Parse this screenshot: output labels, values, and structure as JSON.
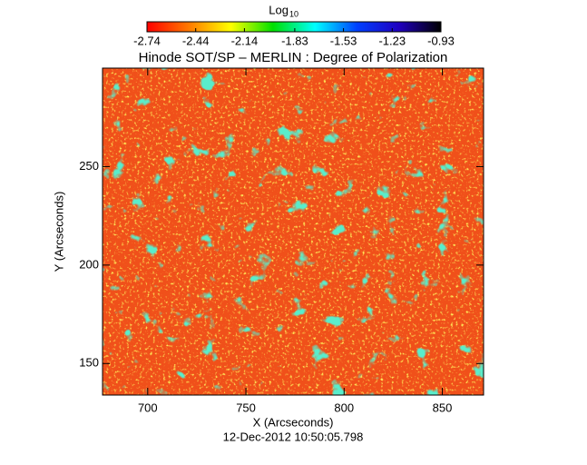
{
  "chart_data": {
    "type": "heatmap",
    "title": "Hinode SOT/SP – MERLIN : Degree of Polarization",
    "subtitle": "12-Dec-2012 10:50:05.798",
    "x_label": "X (Arcseconds)",
    "y_label": "Y (Arcseconds)",
    "xlim": [
      677,
      871
    ],
    "ylim": [
      134,
      300
    ],
    "xticks": [
      700,
      750,
      800,
      850
    ],
    "yticks": [
      150,
      200,
      250
    ],
    "colorbar": {
      "label": "Log",
      "label_subscript": "10",
      "lim": [
        -2.74,
        -0.93
      ],
      "ticks": [
        -2.74,
        -2.44,
        -2.14,
        -1.83,
        -1.53,
        -1.23,
        -0.93
      ],
      "colormap": [
        "#ff0000",
        "#ff7a00",
        "#ffff00",
        "#00e000",
        "#00ffff",
        "#0040ff",
        "#2000c0",
        "#000000"
      ]
    }
  }
}
